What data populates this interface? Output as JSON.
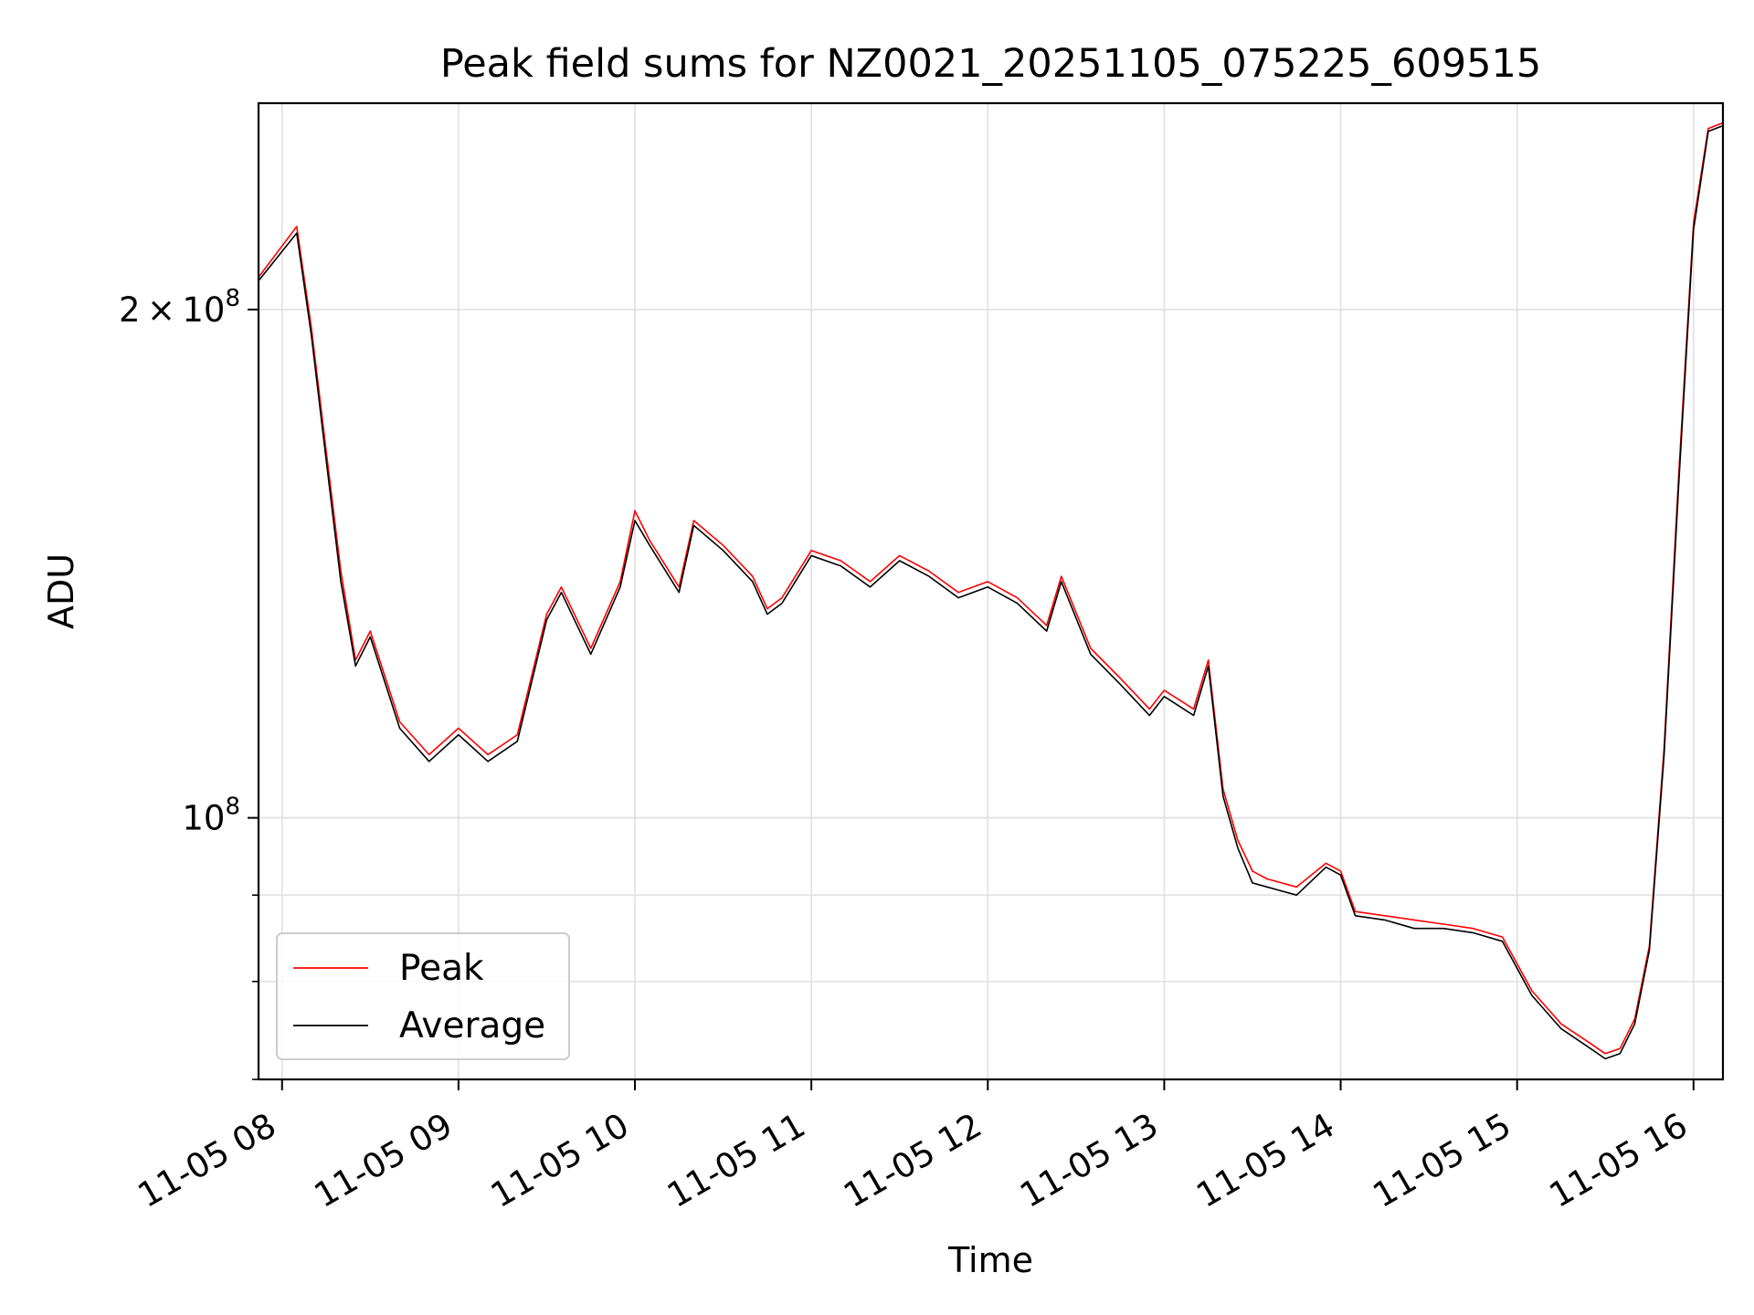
{
  "chart_data": {
    "type": "line",
    "title": "Peak field sums for NZ0021_20251105_075225_609515",
    "xlabel": "Time",
    "ylabel": "ADU",
    "yscale": "log",
    "ylim": [
      70000000,
      265000000
    ],
    "xlim": [
      "2025-11-05 07:52",
      "2025-11-05 16:10"
    ],
    "grid": true,
    "legend_position": "lower-left",
    "x_ticks": [
      {
        "value": "2025-11-05 08:00",
        "label": "11-05 08"
      },
      {
        "value": "2025-11-05 09:00",
        "label": "11-05 09"
      },
      {
        "value": "2025-11-05 10:00",
        "label": "11-05 10"
      },
      {
        "value": "2025-11-05 11:00",
        "label": "11-05 11"
      },
      {
        "value": "2025-11-05 12:00",
        "label": "11-05 12"
      },
      {
        "value": "2025-11-05 13:00",
        "label": "11-05 13"
      },
      {
        "value": "2025-11-05 14:00",
        "label": "11-05 14"
      },
      {
        "value": "2025-11-05 15:00",
        "label": "11-05 15"
      },
      {
        "value": "2025-11-05 16:00",
        "label": "11-05 16"
      }
    ],
    "y_ticks": [
      {
        "value": 100000000,
        "base": "10",
        "exp": "8"
      },
      {
        "value": 200000000,
        "mant": "2",
        "base": "10",
        "exp": "8"
      }
    ],
    "y_minor_ticks": [
      70000000,
      80000000,
      90000000
    ],
    "x": [
      "2025-11-05 07:52",
      "2025-11-05 08:05",
      "2025-11-05 08:10",
      "2025-11-05 08:15",
      "2025-11-05 08:20",
      "2025-11-05 08:25",
      "2025-11-05 08:30",
      "2025-11-05 08:40",
      "2025-11-05 08:50",
      "2025-11-05 09:00",
      "2025-11-05 09:10",
      "2025-11-05 09:20",
      "2025-11-05 09:30",
      "2025-11-05 09:35",
      "2025-11-05 09:45",
      "2025-11-05 09:55",
      "2025-11-05 10:00",
      "2025-11-05 10:05",
      "2025-11-05 10:15",
      "2025-11-05 10:20",
      "2025-11-05 10:30",
      "2025-11-05 10:40",
      "2025-11-05 10:45",
      "2025-11-05 10:50",
      "2025-11-05 11:00",
      "2025-11-05 11:10",
      "2025-11-05 11:20",
      "2025-11-05 11:30",
      "2025-11-05 11:40",
      "2025-11-05 11:50",
      "2025-11-05 12:00",
      "2025-11-05 12:10",
      "2025-11-05 12:20",
      "2025-11-05 12:25",
      "2025-11-05 12:35",
      "2025-11-05 12:45",
      "2025-11-05 12:55",
      "2025-11-05 13:00",
      "2025-11-05 13:10",
      "2025-11-05 13:15",
      "2025-11-05 13:20",
      "2025-11-05 13:25",
      "2025-11-05 13:30",
      "2025-11-05 13:35",
      "2025-11-05 13:45",
      "2025-11-05 13:55",
      "2025-11-05 14:00",
      "2025-11-05 14:05",
      "2025-11-05 14:15",
      "2025-11-05 14:25",
      "2025-11-05 14:35",
      "2025-11-05 14:45",
      "2025-11-05 14:55",
      "2025-11-05 15:05",
      "2025-11-05 15:15",
      "2025-11-05 15:25",
      "2025-11-05 15:30",
      "2025-11-05 15:35",
      "2025-11-05 15:40",
      "2025-11-05 15:45",
      "2025-11-05 15:50",
      "2025-11-05 15:55",
      "2025-11-05 16:00",
      "2025-11-05 16:05",
      "2025-11-05 16:10"
    ],
    "series": [
      {
        "name": "Peak",
        "color": "#ff0000",
        "values": [
          209000000,
          224000000,
          195000000,
          165000000,
          140000000,
          124000000,
          129000000,
          114000000,
          109000000,
          113000000,
          109000000,
          112000000,
          132000000,
          137000000,
          126000000,
          138000000,
          152000000,
          146000000,
          137000000,
          150000000,
          145000000,
          139000000,
          133000000,
          135000000,
          144000000,
          142000000,
          138000000,
          143000000,
          140000000,
          136000000,
          138000000,
          135000000,
          130000000,
          139000000,
          126000000,
          121000000,
          116000000,
          119000000,
          116000000,
          124000000,
          104000000,
          97000000,
          93000000,
          92000000,
          91000000,
          94000000,
          93000000,
          88000000,
          87500000,
          87000000,
          86500000,
          86000000,
          85000000,
          79000000,
          75500000,
          73500000,
          72500000,
          73000000,
          76000000,
          84000000,
          110000000,
          160000000,
          225000000,
          256000000,
          258000000
        ]
      },
      {
        "name": "Average",
        "color": "#000000",
        "values": [
          208000000,
          222000000,
          193000000,
          163000000,
          138000000,
          123000000,
          128000000,
          113000000,
          108000000,
          112000000,
          108000000,
          111000000,
          131000000,
          136000000,
          125000000,
          137000000,
          150000000,
          145000000,
          136000000,
          149000000,
          144000000,
          138000000,
          132000000,
          134000000,
          143000000,
          141000000,
          137000000,
          142000000,
          139000000,
          135000000,
          137000000,
          134000000,
          129000000,
          138000000,
          125000000,
          120000000,
          115000000,
          118000000,
          115000000,
          123000000,
          103000000,
          96000000,
          91500000,
          91000000,
          90000000,
          93500000,
          92500000,
          87500000,
          87000000,
          86000000,
          86000000,
          85500000,
          84500000,
          78500000,
          75000000,
          73000000,
          72000000,
          72500000,
          75500000,
          83500000,
          109000000,
          158000000,
          223000000,
          255000000,
          257000000
        ]
      }
    ]
  }
}
